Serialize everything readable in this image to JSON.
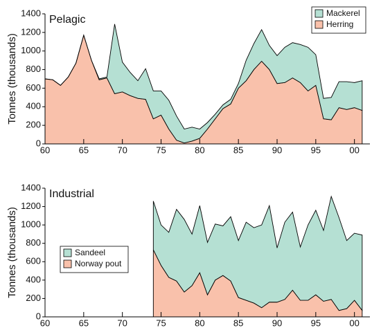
{
  "chart_data": [
    {
      "type": "area",
      "title": "Pelagic",
      "ylabel": "Tonnes (thousands)",
      "x": [
        1960,
        1961,
        1962,
        1963,
        1964,
        1965,
        1966,
        1967,
        1968,
        1969,
        1970,
        1971,
        1972,
        1973,
        1974,
        1975,
        1976,
        1977,
        1978,
        1979,
        1980,
        1981,
        1982,
        1983,
        1984,
        1985,
        1986,
        1987,
        1988,
        1989,
        1990,
        1991,
        1992,
        1993,
        1994,
        1995,
        1996,
        1997,
        1998,
        1999,
        2000,
        2001
      ],
      "series": [
        {
          "name": "Herring",
          "color": "#f9c1ab",
          "values": [
            700,
            690,
            630,
            720,
            870,
            1170,
            900,
            690,
            710,
            540,
            560,
            520,
            490,
            480,
            270,
            310,
            160,
            40,
            10,
            30,
            60,
            160,
            270,
            380,
            430,
            600,
            680,
            800,
            890,
            800,
            650,
            660,
            710,
            660,
            570,
            630,
            270,
            260,
            390,
            370,
            390,
            360
          ]
        },
        {
          "name": "Mackerel",
          "color": "#b5e0d3",
          "values": [
            0,
            0,
            0,
            0,
            0,
            0,
            0,
            10,
            10,
            750,
            320,
            250,
            190,
            330,
            300,
            260,
            310,
            260,
            150,
            150,
            100,
            70,
            50,
            40,
            50,
            50,
            220,
            280,
            340,
            260,
            300,
            380,
            380,
            410,
            470,
            330,
            220,
            240,
            280,
            300,
            270,
            320
          ]
        }
      ],
      "xlim": [
        1960,
        2002
      ],
      "ylim": [
        0,
        1400
      ],
      "xticks": [
        {
          "value": 1960,
          "label": "60"
        },
        {
          "value": 1965,
          "label": "65"
        },
        {
          "value": 1970,
          "label": "70"
        },
        {
          "value": 1975,
          "label": "75"
        },
        {
          "value": 1980,
          "label": "80"
        },
        {
          "value": 1985,
          "label": "85"
        },
        {
          "value": 1990,
          "label": "90"
        },
        {
          "value": 1995,
          "label": "95"
        },
        {
          "value": 2000,
          "label": "00"
        }
      ],
      "yticks": [
        0,
        200,
        400,
        600,
        800,
        1000,
        1200,
        1400
      ],
      "legend": "upper right"
    },
    {
      "type": "area",
      "title": "Industrial",
      "ylabel": "Tonnes (thousands)",
      "x": [
        1974,
        1975,
        1976,
        1977,
        1978,
        1979,
        1980,
        1981,
        1982,
        1983,
        1984,
        1985,
        1986,
        1987,
        1988,
        1989,
        1990,
        1991,
        1992,
        1993,
        1994,
        1995,
        1996,
        1997,
        1998,
        1999,
        2000,
        2001
      ],
      "series": [
        {
          "name": "Norway pout",
          "color": "#f9c1ab",
          "values": [
            730,
            560,
            430,
            390,
            270,
            340,
            480,
            240,
            400,
            450,
            390,
            210,
            180,
            150,
            100,
            160,
            160,
            190,
            290,
            180,
            180,
            240,
            170,
            190,
            70,
            90,
            180,
            70
          ]
        },
        {
          "name": "Sandeel",
          "color": "#b5e0d3",
          "values": [
            530,
            440,
            490,
            780,
            790,
            560,
            730,
            570,
            610,
            540,
            700,
            620,
            850,
            820,
            900,
            1050,
            590,
            840,
            850,
            580,
            820,
            920,
            770,
            1120,
            1010,
            740,
            730,
            820
          ]
        }
      ],
      "xlim": [
        1960,
        2002
      ],
      "ylim": [
        0,
        1400
      ],
      "xticks": [
        {
          "value": 1960,
          "label": "60"
        },
        {
          "value": 1965,
          "label": "65"
        },
        {
          "value": 1970,
          "label": "70"
        },
        {
          "value": 1975,
          "label": "75"
        },
        {
          "value": 1980,
          "label": "80"
        },
        {
          "value": 1985,
          "label": "85"
        },
        {
          "value": 1990,
          "label": "90"
        },
        {
          "value": 1995,
          "label": "95"
        },
        {
          "value": 2000,
          "label": "00"
        }
      ],
      "yticks": [
        0,
        200,
        400,
        600,
        800,
        1000,
        1200,
        1400
      ],
      "legend": "center left"
    }
  ]
}
